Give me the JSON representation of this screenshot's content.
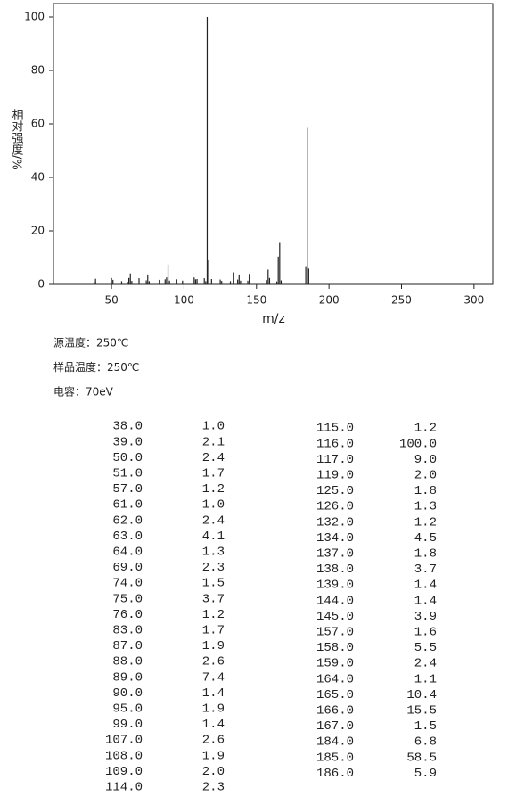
{
  "chart_data": {
    "type": "stem",
    "ylabel": "相对强度/%",
    "xlabel": "m/z",
    "color": "#222222",
    "x": [
      38,
      39,
      50,
      51,
      57,
      61,
      62,
      63,
      64,
      69,
      74,
      75,
      76,
      83,
      87,
      88,
      89,
      90,
      95,
      99,
      107,
      108,
      109,
      114,
      115,
      116,
      117,
      119,
      125,
      126,
      132,
      134,
      137,
      138,
      139,
      144,
      145,
      157,
      158,
      159,
      164,
      165,
      166,
      167,
      184,
      185,
      186
    ],
    "values": [
      1.0,
      2.1,
      2.4,
      1.7,
      1.2,
      1.0,
      2.4,
      4.1,
      1.3,
      2.3,
      1.5,
      3.7,
      1.2,
      1.7,
      1.9,
      2.6,
      7.4,
      1.4,
      1.9,
      1.4,
      2.6,
      1.9,
      2.0,
      2.3,
      1.2,
      100.0,
      9.0,
      2.0,
      1.8,
      1.3,
      1.2,
      4.5,
      1.8,
      3.7,
      1.4,
      1.4,
      3.9,
      1.6,
      5.5,
      2.4,
      1.1,
      10.4,
      15.5,
      1.5,
      6.8,
      58.5,
      5.9
    ],
    "xlim": [
      10,
      313
    ],
    "ylim": [
      0,
      105
    ],
    "xticks": [
      50,
      100,
      150,
      200,
      250,
      300
    ],
    "yticks": [
      0,
      20,
      40,
      60,
      80,
      100
    ]
  },
  "info": [
    "源温度：250℃",
    "样品温度：250℃",
    "电容：70eV"
  ],
  "table": {
    "columns": [
      [
        [
          "38.0",
          "1.0"
        ],
        [
          "39.0",
          "2.1"
        ],
        [
          "50.0",
          "2.4"
        ],
        [
          "51.0",
          "1.7"
        ],
        [
          "57.0",
          "1.2"
        ],
        [
          "61.0",
          "1.0"
        ],
        [
          "62.0",
          "2.4"
        ],
        [
          "63.0",
          "4.1"
        ],
        [
          "64.0",
          "1.3"
        ],
        [
          "69.0",
          "2.3"
        ],
        [
          "74.0",
          "1.5"
        ],
        [
          "75.0",
          "3.7"
        ],
        [
          "76.0",
          "1.2"
        ],
        [
          "83.0",
          "1.7"
        ],
        [
          "87.0",
          "1.9"
        ],
        [
          "88.0",
          "2.6"
        ],
        [
          "89.0",
          "7.4"
        ],
        [
          "90.0",
          "1.4"
        ],
        [
          "95.0",
          "1.9"
        ],
        [
          "99.0",
          "1.4"
        ],
        [
          "107.0",
          "2.6"
        ],
        [
          "108.0",
          "1.9"
        ],
        [
          "109.0",
          "2.0"
        ],
        [
          "114.0",
          "2.3"
        ]
      ],
      [
        [
          "115.0",
          "1.2"
        ],
        [
          "116.0",
          "100.0"
        ],
        [
          "117.0",
          "9.0"
        ],
        [
          "119.0",
          "2.0"
        ],
        [
          "125.0",
          "1.8"
        ],
        [
          "126.0",
          "1.3"
        ],
        [
          "132.0",
          "1.2"
        ],
        [
          "134.0",
          "4.5"
        ],
        [
          "137.0",
          "1.8"
        ],
        [
          "138.0",
          "3.7"
        ],
        [
          "139.0",
          "1.4"
        ],
        [
          "144.0",
          "1.4"
        ],
        [
          "145.0",
          "3.9"
        ],
        [
          "157.0",
          "1.6"
        ],
        [
          "158.0",
          "5.5"
        ],
        [
          "159.0",
          "2.4"
        ],
        [
          "164.0",
          "1.1"
        ],
        [
          "165.0",
          "10.4"
        ],
        [
          "166.0",
          "15.5"
        ],
        [
          "167.0",
          "1.5"
        ],
        [
          "184.0",
          "6.8"
        ],
        [
          "185.0",
          "58.5"
        ],
        [
          "186.0",
          "5.9"
        ]
      ]
    ]
  }
}
